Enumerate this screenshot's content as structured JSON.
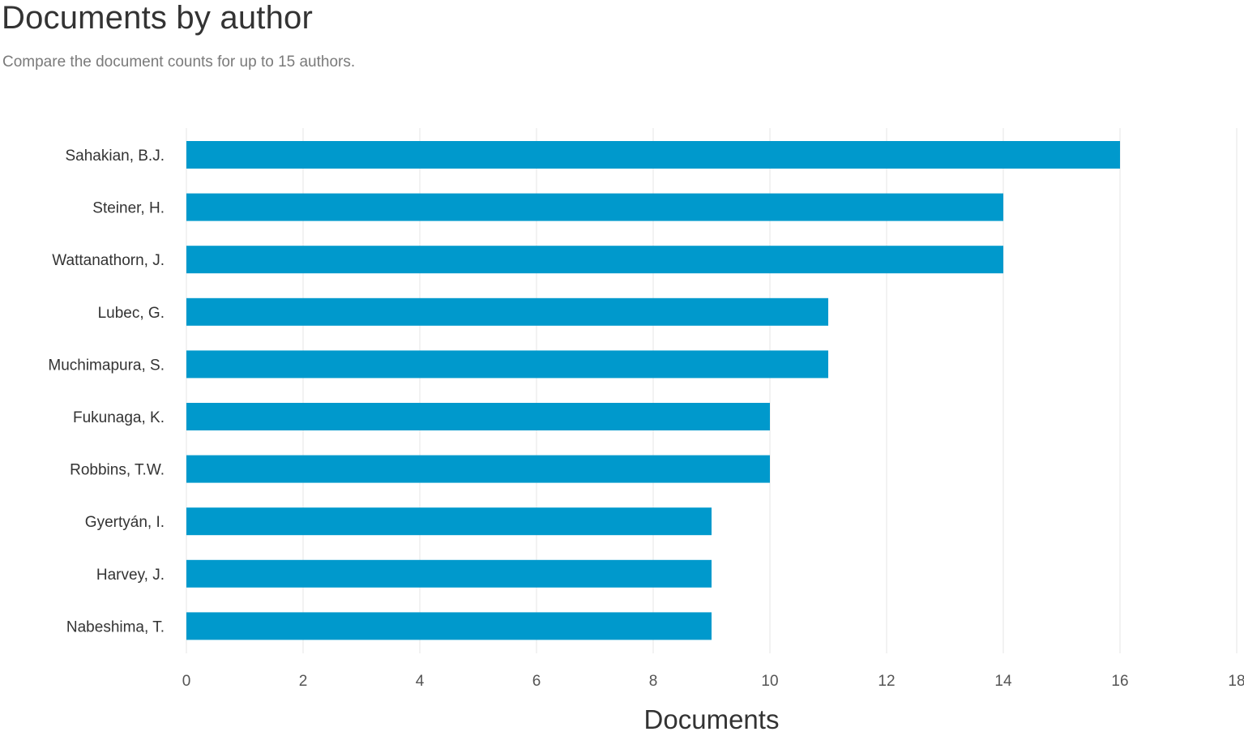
{
  "header": {
    "title": "Documents by author",
    "subtitle": "Compare the document counts for up to 15 authors."
  },
  "colors": {
    "bar": "#0099cc",
    "grid": "#e6e6e6"
  },
  "chart_data": {
    "type": "bar",
    "orientation": "horizontal",
    "categories": [
      "Sahakian, B.J.",
      "Steiner, H.",
      "Wattanathorn, J.",
      "Lubec, G.",
      "Muchimapura, S.",
      "Fukunaga, K.",
      "Robbins, T.W.",
      "Gyertyán, I.",
      "Harvey, J.",
      "Nabeshima, T."
    ],
    "values": [
      16,
      14,
      14,
      11,
      11,
      10,
      10,
      9,
      9,
      9
    ],
    "xlabel": "Documents",
    "ylabel": "",
    "xlim": [
      0,
      18
    ],
    "xticks": [
      "0",
      "2",
      "4",
      "6",
      "8",
      "10",
      "12",
      "14",
      "16",
      "18"
    ],
    "grid": true,
    "legend": "none"
  }
}
